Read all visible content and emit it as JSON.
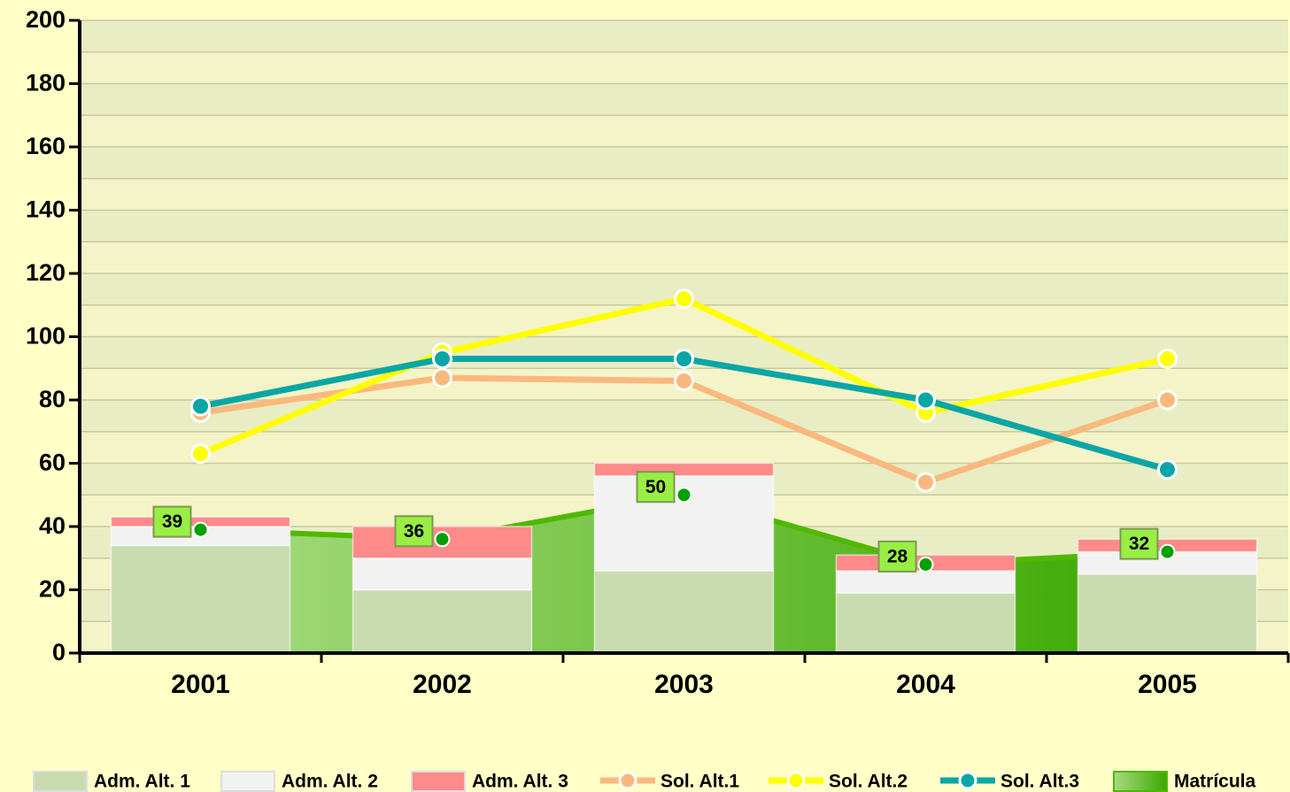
{
  "chart_data": {
    "type": "bar_line",
    "categories": [
      "2001",
      "2002",
      "2003",
      "2004",
      "2005"
    ],
    "series": [
      {
        "name": "Adm. Alt. 1",
        "type": "bar",
        "color": "#c8dcb0",
        "values": [
          34,
          20,
          26,
          19,
          25
        ]
      },
      {
        "name": "Adm. Alt. 2",
        "type": "bar",
        "color": "#f2f2f2",
        "values": [
          6,
          10,
          30,
          7,
          7
        ]
      },
      {
        "name": "Adm. Alt. 3",
        "type": "bar",
        "color": "#ff8a8a",
        "values": [
          3,
          10,
          4,
          5,
          4
        ]
      },
      {
        "name": "Sol. Alt.1",
        "type": "line",
        "color": "#f9b97e",
        "values": [
          76,
          87,
          86,
          54,
          80
        ]
      },
      {
        "name": "Sol. Alt.2",
        "type": "line",
        "color": "#ffff00",
        "values": [
          63,
          95,
          112,
          76,
          93
        ]
      },
      {
        "name": "Sol. Alt.3",
        "type": "line",
        "color": "#0aa6a6",
        "values": [
          78,
          93,
          93,
          80,
          58
        ]
      },
      {
        "name": "Matrícula",
        "type": "area",
        "color": "#4fb800",
        "values": [
          39,
          36,
          50,
          28,
          32
        ]
      }
    ],
    "ylim": [
      0,
      200
    ],
    "yticks": [
      0,
      20,
      40,
      60,
      80,
      100,
      120,
      140,
      160,
      180,
      200
    ],
    "grid": true
  }
}
